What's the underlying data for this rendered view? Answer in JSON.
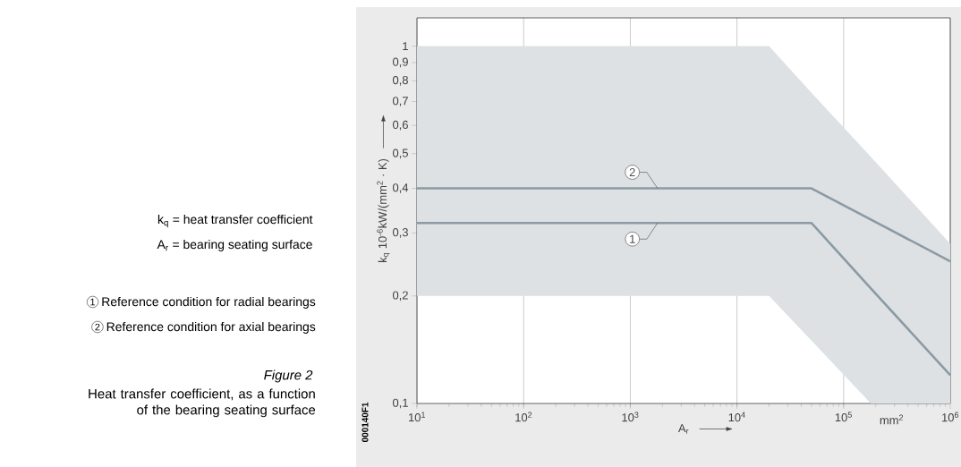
{
  "chart_data": {
    "type": "line",
    "title": "Figure 2",
    "subtitle": "Heat transfer coefficient, as a function of the bearing seating surface",
    "xlabel": "A$_{r}$",
    "ylabel": "k$_{q}$ 10$^{-6}$kW/(mm$^{2}$ · K)",
    "log": "xy",
    "grid": "x",
    "xlim": [
      10,
      1000000
    ],
    "ylim": [
      0.1,
      1.2
    ],
    "xticks": [
      {
        "value": 10,
        "label": "10$^{1}$"
      },
      {
        "value": 100,
        "label": "10$^{2}$"
      },
      {
        "value": 1000,
        "label": "10$^{3}$"
      },
      {
        "value": 10000,
        "label": "10$^{4}$"
      },
      {
        "value": 100000,
        "label": "10$^{5}$"
      },
      {
        "value": 1000000,
        "label": "10$^{6}$"
      }
    ],
    "yticks": [
      {
        "value": 0.1,
        "label": "0,1"
      },
      {
        "value": 0.2,
        "label": "0,2"
      },
      {
        "value": 0.3,
        "label": "0,3"
      },
      {
        "value": 0.4,
        "label": "0,4"
      },
      {
        "value": 0.5,
        "label": "0,5"
      },
      {
        "value": 0.6,
        "label": "0,6"
      },
      {
        "value": 0.7,
        "label": "0,7"
      },
      {
        "value": 0.8,
        "label": "0,8"
      },
      {
        "value": 0.9,
        "label": "0,9"
      },
      {
        "value": 1,
        "label": "1"
      }
    ],
    "series": [
      {
        "name": "1",
        "color": "#8c9aa4",
        "x": [
          10,
          20000,
          50000,
          180000,
          1000000
        ],
        "values": [
          0.32,
          0.32,
          0.32,
          0.21,
          0.12
        ],
        "upper": [
          1,
          1,
          0.74,
          0.49,
          0.28
        ],
        "lower": [
          0.2,
          0.2,
          0.15,
          0.1,
          0.1
        ]
      },
      {
        "name": "2",
        "color": "#8c9aa4",
        "x": [
          10,
          50000,
          1000000
        ],
        "values": [
          0.4,
          0.4,
          0.25
        ]
      }
    ],
    "annotations": [
      "k$_{q}$ = heat transfer coefficient",
      "A$_{r}$ = bearing seating surface",
      "Reference condition for radial bearings",
      "Reference condition for axial bearings",
      "mm$^{2}$",
      "000140F1"
    ]
  }
}
